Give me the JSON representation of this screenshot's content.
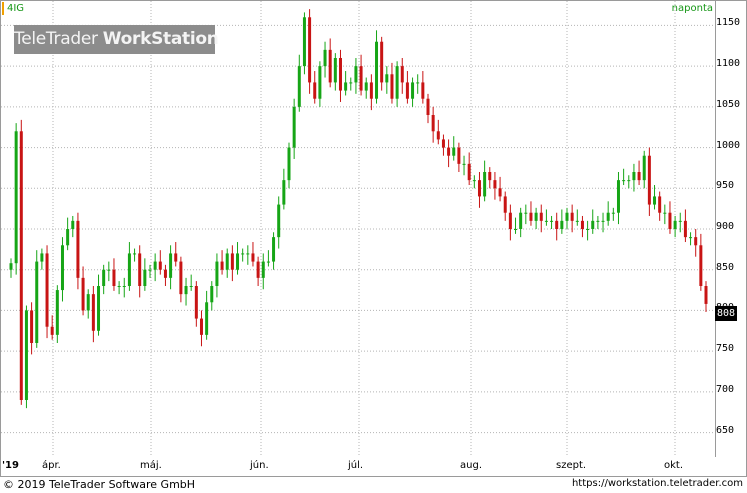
{
  "header": {
    "ticker": "4IG",
    "frequency": "naponta"
  },
  "watermark": {
    "brand_light": "TeleTrader",
    "brand_bold": "WorkStation"
  },
  "last_price_label": "808",
  "footer": {
    "copyright": "© 2019 TeleTrader Software GmbH",
    "url": "https://workstation.teletrader.com"
  },
  "colors": {
    "up": "#16a516",
    "down": "#c81414",
    "grid": "#b4b4b4",
    "ticker": "#169616"
  },
  "chart_data": {
    "type": "candlestick",
    "title": "",
    "ylim": [
      620,
      1180
    ],
    "y_ticks": [
      650,
      700,
      750,
      800,
      850,
      900,
      950,
      1000,
      1050,
      1100,
      1150
    ],
    "x_labels": [
      "'19",
      "ápr.",
      "máj.",
      "jún.",
      "júl.",
      "aug.",
      "szept.",
      "okt."
    ],
    "grid": true,
    "closes": [
      858,
      1020,
      690,
      800,
      760,
      860,
      870,
      780,
      770,
      825,
      880,
      900,
      910,
      840,
      800,
      820,
      775,
      830,
      850,
      850,
      830,
      830,
      830,
      870,
      870,
      830,
      850,
      850,
      860,
      850,
      840,
      870,
      860,
      820,
      830,
      830,
      790,
      770,
      810,
      830,
      860,
      850,
      870,
      850,
      870,
      870,
      870,
      860,
      840,
      860,
      860,
      890,
      930,
      960,
      1000,
      1050,
      1100,
      1160,
      1080,
      1060,
      1100,
      1120,
      1080,
      1110,
      1070,
      1080,
      1080,
      1100,
      1070,
      1080,
      1060,
      1130,
      1080,
      1090,
      1060,
      1100,
      1080,
      1060,
      1080,
      1080,
      1060,
      1040,
      1020,
      1010,
      1000,
      990,
      1000,
      980,
      980,
      960,
      960,
      940,
      970,
      960,
      950,
      940,
      920,
      900,
      900,
      920,
      920,
      910,
      920,
      910,
      910,
      910,
      900,
      910,
      920,
      910,
      910,
      900,
      900,
      910,
      910,
      910,
      920,
      920,
      960,
      960,
      960,
      970,
      960,
      990,
      930,
      940,
      920,
      920,
      900,
      910,
      910,
      890,
      890,
      880,
      830,
      808
    ],
    "series": [
      {
        "name": "4IG",
        "values": []
      }
    ]
  }
}
